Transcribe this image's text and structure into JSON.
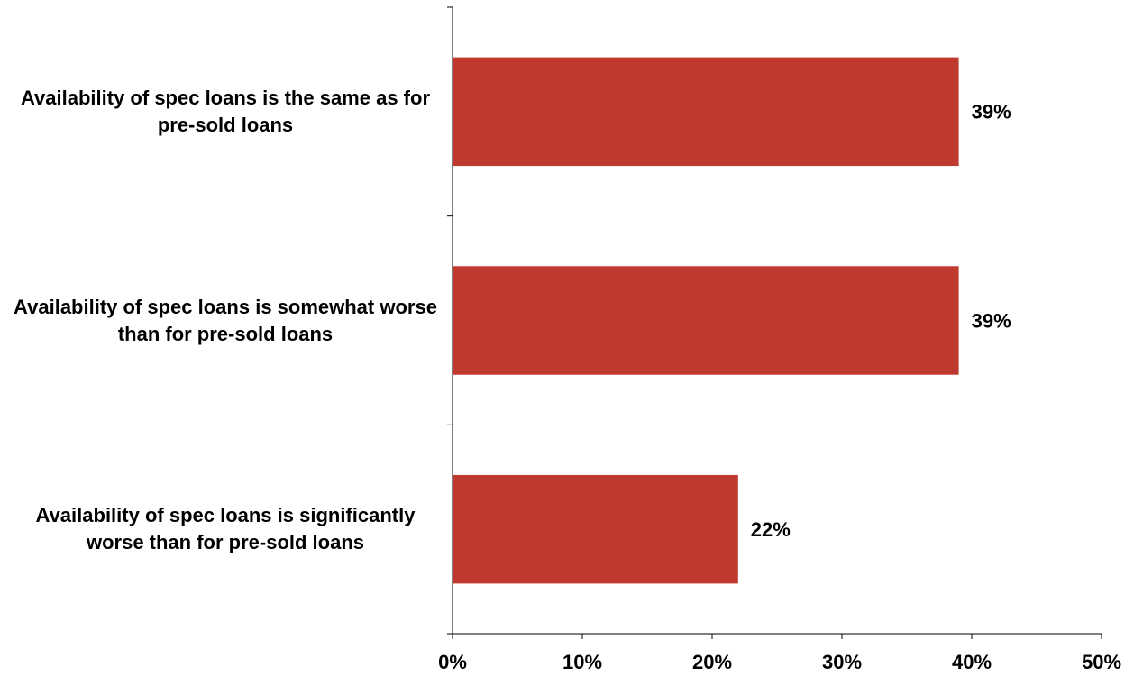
{
  "chart_data": {
    "type": "hbar",
    "categories": [
      "Availability of spec loans is the same as for pre-sold loans",
      "Availability of spec loans is somewhat worse than for pre-sold loans",
      "Availability of spec loans is significantly worse than for pre-sold loans"
    ],
    "values": [
      39,
      39,
      22
    ],
    "value_labels": [
      "39%",
      "39%",
      "22%"
    ],
    "color": "#c0392f",
    "xlim": [
      0,
      50
    ],
    "xticks": [
      {
        "value": 0,
        "label": "0%"
      },
      {
        "value": 10,
        "label": "10%"
      },
      {
        "value": 20,
        "label": "20%"
      },
      {
        "value": 30,
        "label": "30%"
      },
      {
        "value": 40,
        "label": "40%"
      },
      {
        "value": 50,
        "label": "50%"
      }
    ],
    "grid": false
  }
}
